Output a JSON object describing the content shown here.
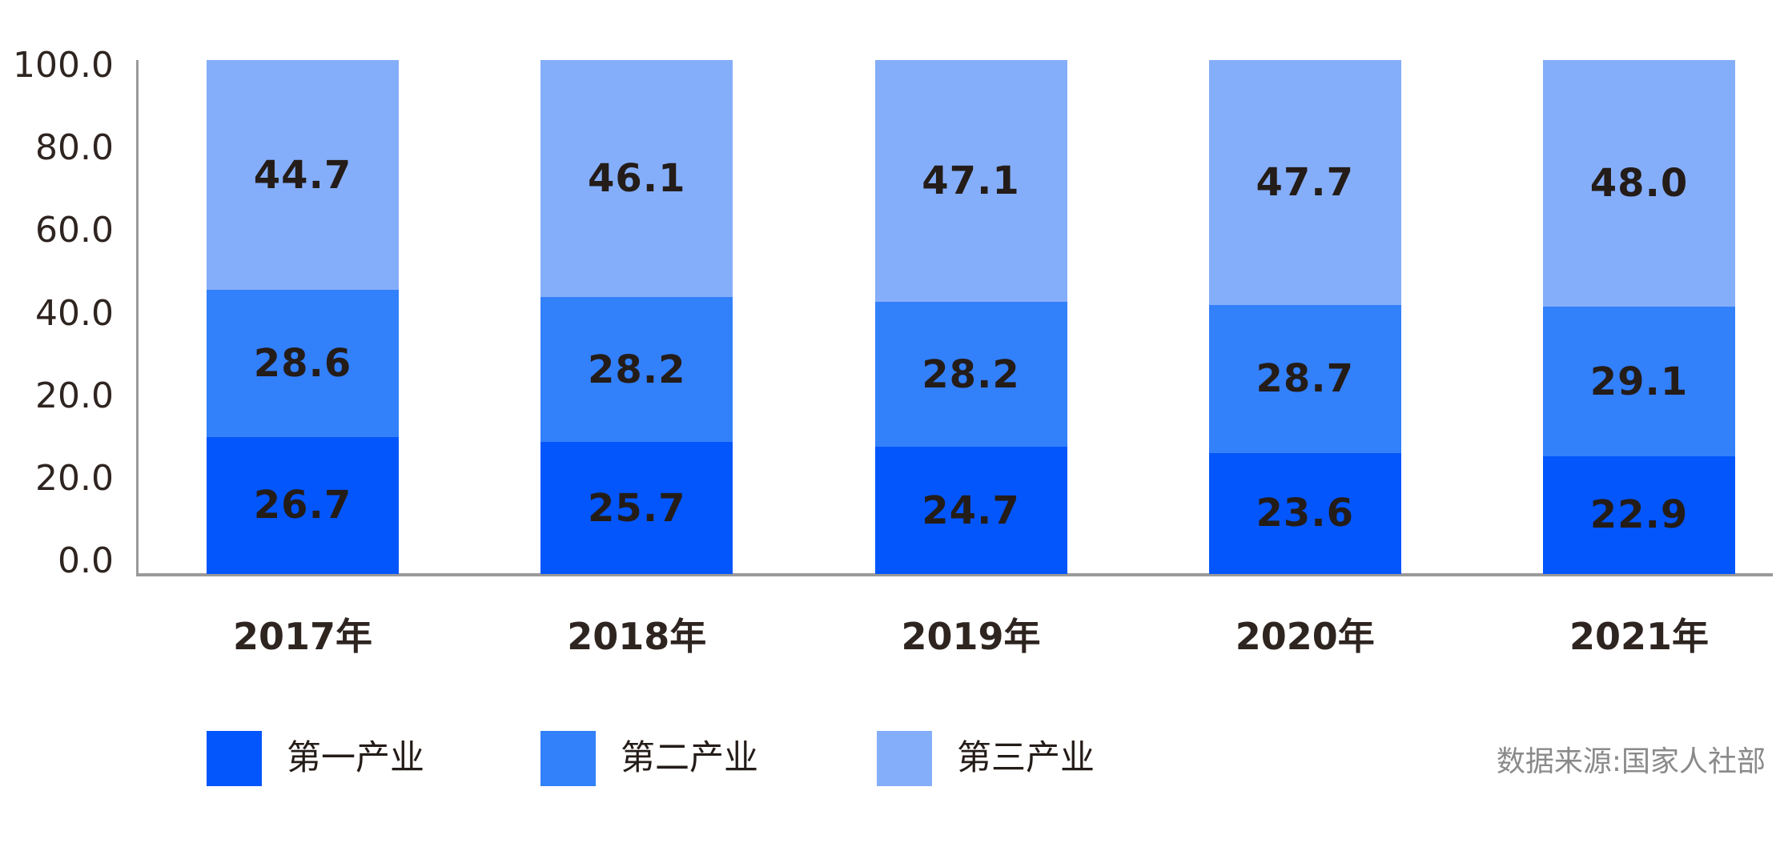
{
  "chart_data": {
    "type": "bar",
    "stacked": true,
    "title": "",
    "xlabel": "",
    "ylabel": "",
    "ylim": [
      0,
      100
    ],
    "grid": false,
    "legend_position": "bottom",
    "categories": [
      "2017年",
      "2018年",
      "2019年",
      "2020年",
      "2021年"
    ],
    "series": [
      {
        "name": "第一产业",
        "color": "#0356fb",
        "values": [
          26.7,
          25.7,
          24.7,
          23.6,
          22.9
        ]
      },
      {
        "name": "第二产业",
        "color": "#3380fb",
        "values": [
          28.6,
          28.2,
          28.2,
          28.7,
          29.1
        ]
      },
      {
        "name": "第三产业",
        "color": "#85aefa",
        "values": [
          44.7,
          46.1,
          47.1,
          47.7,
          48.0
        ]
      }
    ],
    "y_axis_tick_labels": [
      "100.0",
      "80.0",
      "60.0",
      "40.0",
      "20.0",
      "20.0",
      "0.0"
    ],
    "axis_color": "#9a9a9a",
    "source_note": "数据来源:国家人社部"
  }
}
